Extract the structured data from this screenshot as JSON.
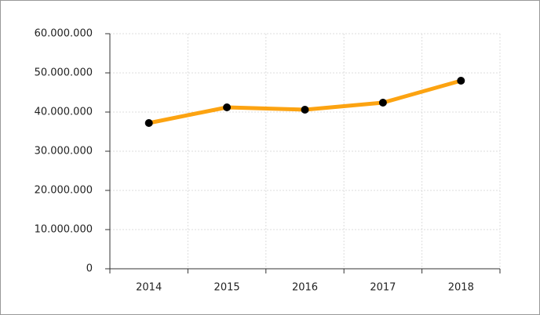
{
  "chart_data": {
    "type": "line",
    "categories": [
      "2014",
      "2015",
      "2016",
      "2017",
      "2018"
    ],
    "series": [
      {
        "color": "#fca311",
        "values": [
          37200000,
          41200000,
          40600000,
          42400000,
          48000000
        ]
      }
    ],
    "ylim": [
      0,
      60000000
    ],
    "yticks": [
      0,
      {
        "value": 10000000,
        "label": "10.000.000"
      },
      {
        "value": 20000000,
        "label": "20.000.000"
      },
      {
        "value": 30000000,
        "label": "30.000.000"
      },
      {
        "value": 40000000,
        "label": "40.000.000"
      },
      {
        "value": 50000000,
        "label": "50.000.000"
      },
      {
        "value": 60000000,
        "label": "60.000.000"
      }
    ],
    "grid": true
  }
}
